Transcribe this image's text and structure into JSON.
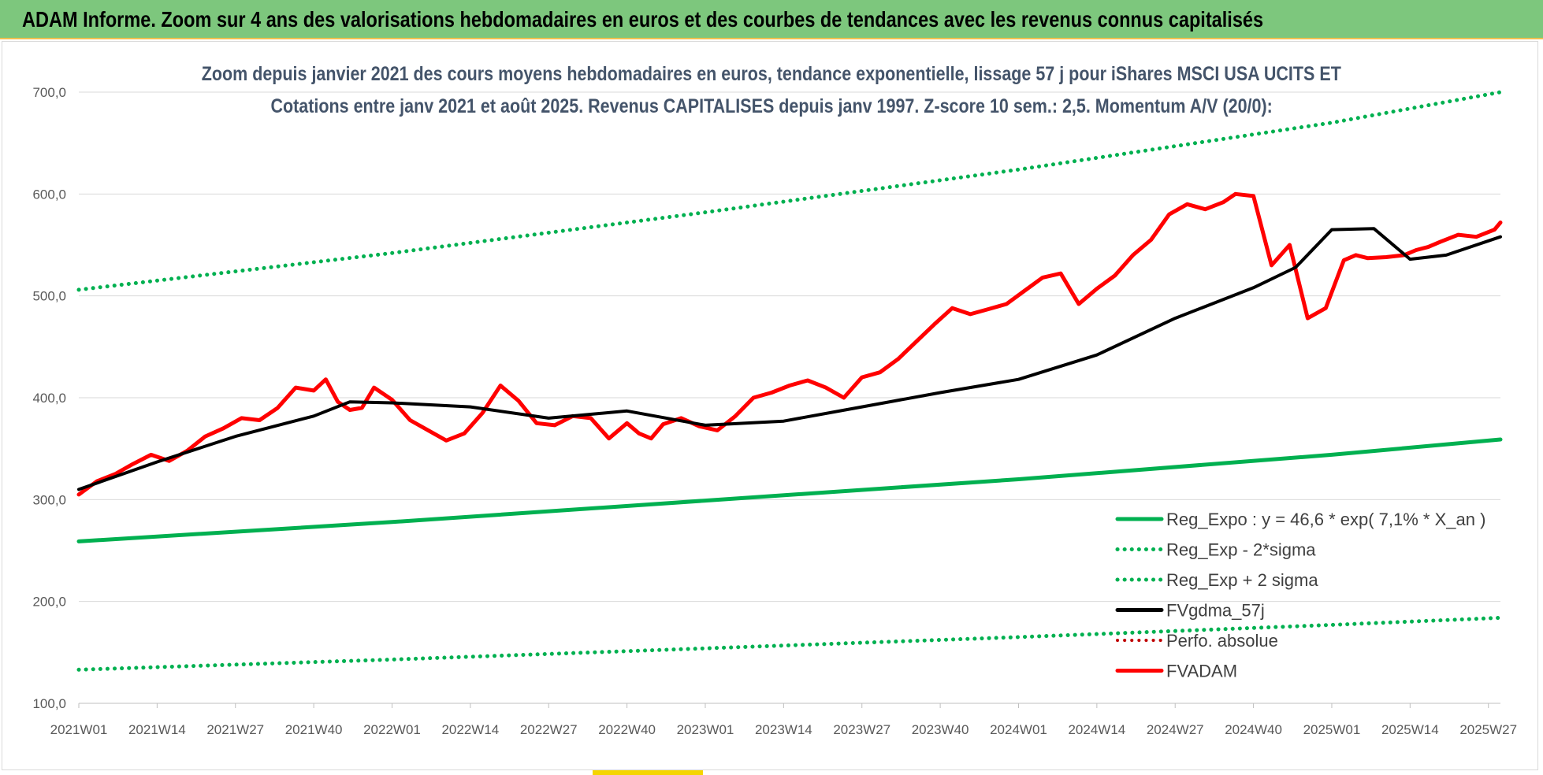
{
  "header": {
    "title": "ADAM Informe. Zoom sur 4 ans des valorisations hebdomadaires en euros et des courbes de tendances avec les revenus connus capitalisés"
  },
  "colors": {
    "banner": "#7dc77d",
    "trend": "#00b050",
    "fvadam": "#ff0000",
    "fvgdma": "#000000",
    "perfo": "#c00000",
    "grid": "#d9d9d9",
    "axis_text": "#595959"
  },
  "chart_data": {
    "type": "line",
    "title": "Zoom depuis janvier 2021 des cours moyens hebdomadaires en euros, tendance exponentielle, lissage 57 j pour iShares MSCI USA UCITS ET",
    "subtitle": "Cotations entre janv 2021 et août 2025. Revenus CAPITALISES depuis janv 1997. Z-score 10 sem.: 2,5. Momentum A/V (20/0):",
    "ylim": [
      100,
      700
    ],
    "yticks": [
      "100,0",
      "200,0",
      "300,0",
      "400,0",
      "500,0",
      "600,0",
      "700,0"
    ],
    "xticks": [
      "2021W01",
      "2021W14",
      "2021W27",
      "2021W40",
      "2022W01",
      "2022W14",
      "2022W27",
      "2022W40",
      "2023W01",
      "2023W14",
      "2023W27",
      "2023W40",
      "2024W01",
      "2024W14",
      "2024W27",
      "2024W40",
      "2025W01",
      "2025W14",
      "2025W27"
    ],
    "x_week_range": [
      0,
      236
    ],
    "grid": true,
    "legend_position": "bottom-right",
    "series": [
      {
        "name": "Reg_Expo : y = 46,6 * exp( 7,1% *  X_an )",
        "style": "solid",
        "color": "#00b050",
        "x": [
          0,
          52,
          104,
          156,
          208,
          236
        ],
        "values": [
          259,
          278,
          299,
          320,
          344,
          359
        ]
      },
      {
        "name": "Reg_Exp - 2*sigma",
        "style": "dotted",
        "color": "#00b050",
        "x": [
          0,
          52,
          104,
          156,
          208,
          236
        ],
        "values": [
          133,
          143,
          154,
          165,
          177,
          184
        ]
      },
      {
        "name": "Reg_Exp + 2 sigma",
        "style": "dotted",
        "color": "#00b050",
        "x": [
          0,
          52,
          104,
          156,
          208,
          236
        ],
        "values": [
          506,
          542,
          582,
          624,
          670,
          700
        ]
      },
      {
        "name": "FVgdma_57j",
        "style": "solid",
        "color": "#000000",
        "x": [
          0,
          13,
          26,
          39,
          45,
          52,
          65,
          78,
          91,
          104,
          117,
          130,
          143,
          156,
          169,
          182,
          195,
          202,
          208,
          215,
          221,
          227,
          236
        ],
        "values": [
          310,
          337,
          362,
          382,
          396,
          395,
          391,
          380,
          387,
          373,
          377,
          391,
          405,
          418,
          442,
          478,
          508,
          528,
          565,
          566,
          536,
          540,
          558
        ]
      },
      {
        "name": "Perfo. absolue",
        "style": "dotted",
        "color": "#c00000",
        "x": [],
        "values": []
      },
      {
        "name": "FVADAM",
        "style": "solid",
        "color": "#ff0000",
        "x": [
          0,
          3,
          6,
          9,
          12,
          15,
          18,
          21,
          24,
          27,
          30,
          33,
          36,
          39,
          41,
          43,
          45,
          47,
          49,
          52,
          55,
          58,
          61,
          64,
          67,
          70,
          73,
          76,
          79,
          82,
          85,
          88,
          91,
          93,
          95,
          97,
          100,
          103,
          106,
          109,
          112,
          115,
          118,
          121,
          124,
          127,
          130,
          133,
          136,
          139,
          142,
          145,
          148,
          151,
          154,
          157,
          160,
          163,
          166,
          169,
          172,
          175,
          178,
          181,
          184,
          187,
          190,
          192,
          195,
          198,
          201,
          204,
          207,
          210,
          212,
          214,
          217,
          220,
          222,
          224,
          226,
          229,
          232,
          235,
          236
        ],
        "values": [
          305,
          318,
          325,
          335,
          344,
          338,
          348,
          362,
          370,
          380,
          378,
          390,
          410,
          407,
          418,
          396,
          388,
          390,
          410,
          398,
          378,
          368,
          358,
          365,
          385,
          412,
          397,
          375,
          373,
          382,
          380,
          360,
          375,
          365,
          360,
          374,
          380,
          372,
          368,
          382,
          400,
          405,
          412,
          417,
          410,
          400,
          420,
          425,
          438,
          455,
          472,
          488,
          482,
          487,
          492,
          505,
          518,
          522,
          492,
          507,
          520,
          540,
          555,
          580,
          590,
          585,
          592,
          600,
          598,
          530,
          550,
          478,
          488,
          535,
          540,
          537,
          538,
          540,
          545,
          548,
          553,
          560,
          558,
          565,
          572
        ]
      }
    ]
  }
}
